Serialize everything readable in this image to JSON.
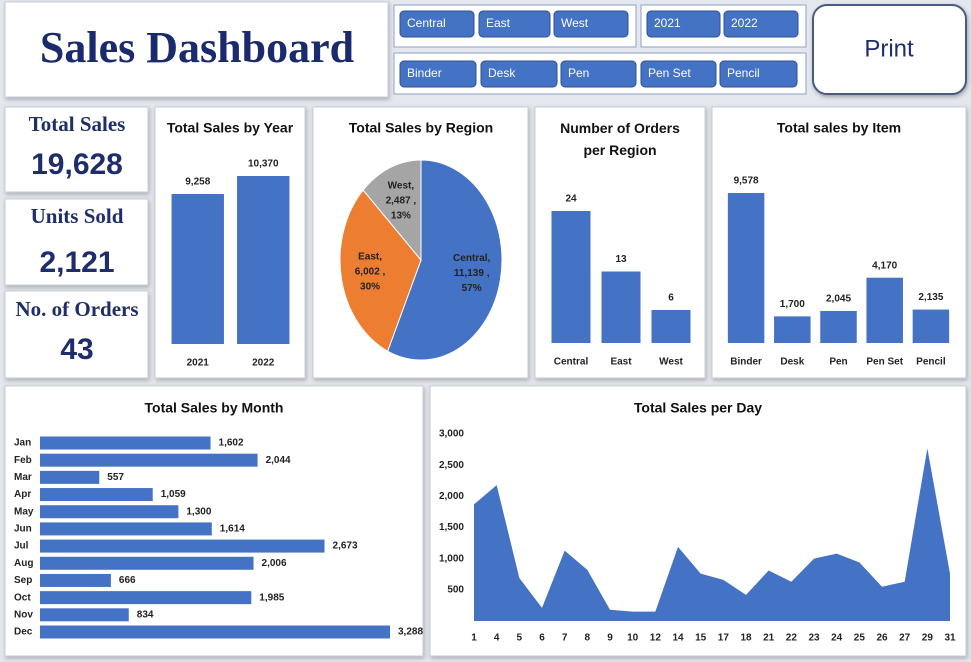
{
  "header": {
    "title": "Sales Dashboard"
  },
  "slicers": {
    "regions": [
      "Central",
      "East",
      "West"
    ],
    "years": [
      "2021",
      "2022"
    ],
    "items": [
      "Binder",
      "Desk",
      "Pen",
      "Pen Set",
      "Pencil"
    ]
  },
  "print_button": "Print",
  "kpis": [
    {
      "label": "Total Sales",
      "value": 19628,
      "value_label": "19,628"
    },
    {
      "label": "Units Sold",
      "value": 2121,
      "value_label": "2,121"
    },
    {
      "label": "No. of Orders",
      "value": 43
    }
  ],
  "chart_data": [
    {
      "type": "bar",
      "title": "Total Sales by Year",
      "categories": [
        "2021",
        "2022"
      ],
      "values": [
        9258,
        10370
      ],
      "value_labels": [
        "9,258",
        "10,370"
      ],
      "color": "#4472c4"
    },
    {
      "type": "pie",
      "title": "Total Sales by Region",
      "categories": [
        "Central,",
        "East,",
        "West,"
      ],
      "values": [
        11139,
        6002,
        2487
      ],
      "value_labels": [
        "11,139 ,",
        "6,002 ,",
        "2,487 ,"
      ],
      "percent_labels": [
        "57%",
        "30%",
        "13%"
      ],
      "colors": [
        "#4472c4",
        "#ed7d31",
        "#a5a5a5"
      ]
    },
    {
      "type": "bar",
      "title": "Number of Orders per Region",
      "categories": [
        "Central",
        "East",
        "West"
      ],
      "values": [
        24,
        13,
        6
      ],
      "color": "#4472c4"
    },
    {
      "type": "bar",
      "title": "Total sales by Item",
      "categories": [
        "Binder",
        "Desk",
        "Pen",
        "Pen Set",
        "Pencil"
      ],
      "values": [
        9578,
        1700,
        2045,
        4170,
        2135
      ],
      "value_labels": [
        "9,578",
        "1,700",
        "2,045",
        "4,170",
        "2,135"
      ],
      "color": "#4472c4"
    },
    {
      "type": "barh",
      "title": "Total Sales by Month",
      "categories": [
        "Jan",
        "Feb",
        "Mar",
        "Apr",
        "May",
        "Jun",
        "Jul",
        "Aug",
        "Sep",
        "Oct",
        "Nov",
        "Dec"
      ],
      "values": [
        1602,
        2044,
        557,
        1059,
        1300,
        1614,
        2673,
        2006,
        666,
        1985,
        834,
        3288
      ],
      "value_labels": [
        "1,602",
        "2,044",
        "557",
        "1,059",
        "1,300",
        "1,614",
        "2,673",
        "2,006",
        "666",
        "1,985",
        "834",
        "3,288"
      ],
      "color": "#4472c4"
    },
    {
      "type": "area",
      "title": "Total Sales per Day",
      "categories": [
        "1",
        "4",
        "5",
        "6",
        "7",
        "8",
        "9",
        "10",
        "12",
        "14",
        "15",
        "17",
        "18",
        "21",
        "22",
        "23",
        "24",
        "25",
        "26",
        "27",
        "29",
        "31"
      ],
      "values": [
        1870,
        2180,
        690,
        210,
        1130,
        820,
        180,
        150,
        150,
        1190,
        760,
        660,
        420,
        810,
        630,
        1000,
        1080,
        940,
        550,
        630,
        2770,
        760
      ],
      "ylim": [
        0,
        3000
      ],
      "yticks": [
        500,
        {
          "value": 1000,
          "label": "1,000"
        },
        {
          "value": 1500,
          "label": "1,500"
        },
        {
          "value": 2000,
          "label": "2,000"
        },
        {
          "value": 2500,
          "label": "2,500"
        },
        {
          "value": 3000,
          "label": "3,000"
        }
      ],
      "color": "#4472c4"
    }
  ]
}
